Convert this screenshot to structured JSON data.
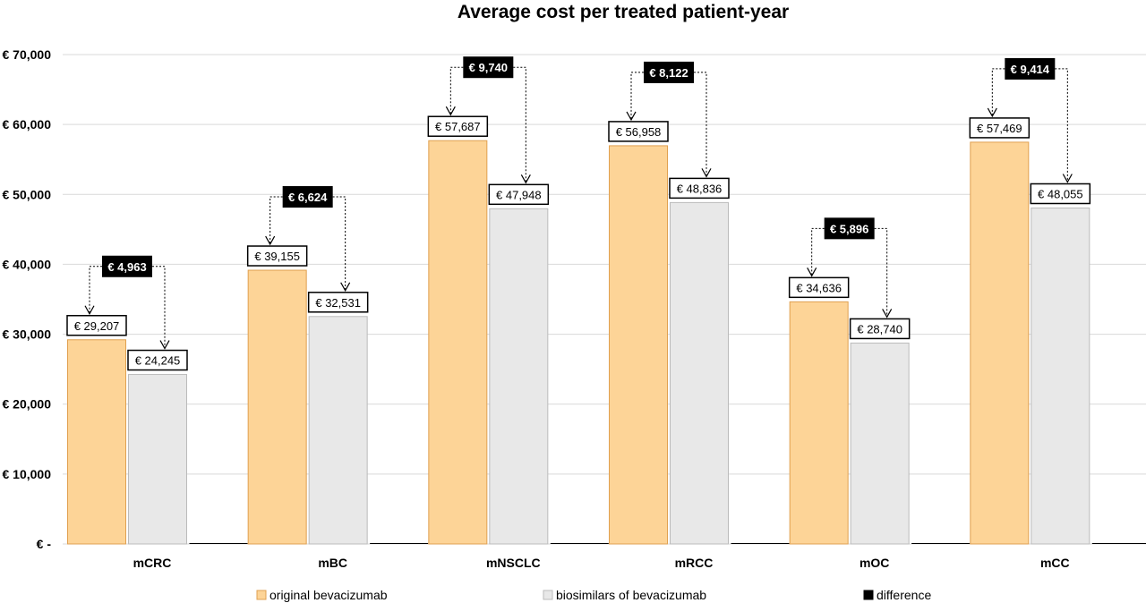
{
  "chart_data": {
    "type": "bar",
    "title": "Average cost per treated patient-year",
    "xlabel": "",
    "ylabel": "",
    "categories": [
      "mCRC",
      "mBC",
      "mNSCLC",
      "mRCC",
      "mOC",
      "mCC"
    ],
    "series": [
      {
        "name": "original bevacizumab",
        "color": "#FDD497",
        "stroke": "#E0A050",
        "values": [
          29207,
          39155,
          57687,
          56958,
          34636,
          57469
        ],
        "labels": [
          "€ 29,207",
          "€ 39,155",
          "€ 57,687",
          "€ 56,958",
          "€ 34,636",
          "€ 57,469"
        ]
      },
      {
        "name": "biosimilars of bevacizumab",
        "color": "#E8E8E8",
        "stroke": "#BBBBBB",
        "values": [
          24245,
          32531,
          47948,
          48836,
          28740,
          48055
        ],
        "labels": [
          "€ 24,245",
          "€ 32,531",
          "€ 47,948",
          "€ 48,836",
          "€ 28,740",
          "€ 48,055"
        ]
      },
      {
        "name": "difference",
        "color": "#000000",
        "values": [
          4963,
          6624,
          9740,
          8122,
          5896,
          9414
        ],
        "labels": [
          "€ 4,963",
          "€ 6,624",
          "€ 9,740",
          "€ 8,122",
          "€ 5,896",
          "€ 9,414"
        ]
      }
    ],
    "ylim": [
      0,
      70000
    ],
    "yticks": [
      0,
      10000,
      20000,
      30000,
      40000,
      50000,
      60000,
      70000
    ],
    "ytick_labels": [
      "€ -",
      "€ 10,000",
      "€ 20,000",
      "€ 30,000",
      "€ 40,000",
      "€ 50,000",
      "€ 60,000",
      "€ 70,000"
    ],
    "grid": true,
    "legend_position": "bottom"
  }
}
